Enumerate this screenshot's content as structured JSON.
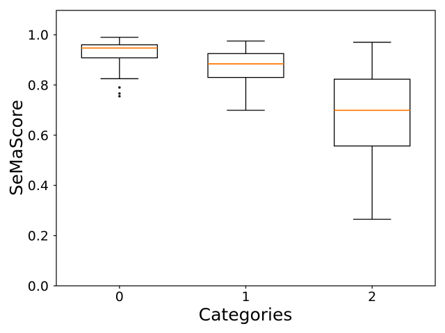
{
  "chart_data": {
    "type": "boxplot",
    "title": "",
    "xlabel": "Categories",
    "ylabel": "SeMaScore",
    "categories": [
      "0",
      "1",
      "2"
    ],
    "y_ticks": [
      "0.0",
      "0.2",
      "0.4",
      "0.6",
      "0.8",
      "1.0"
    ],
    "ylim": [
      0,
      1.097
    ],
    "grid": false,
    "legend": false,
    "colors": {
      "median": "#ff7f0e",
      "box_edge": "#000000",
      "text": "#000000",
      "background": "#ffffff"
    },
    "series": [
      {
        "category": "0",
        "whisker_low": 0.825,
        "q1": 0.908,
        "median": 0.947,
        "q3": 0.96,
        "whisker_high": 0.99,
        "outliers": [
          0.79,
          0.766,
          0.755
        ]
      },
      {
        "category": "1",
        "whisker_low": 0.699,
        "q1": 0.83,
        "median": 0.884,
        "q3": 0.925,
        "whisker_high": 0.975,
        "outliers": []
      },
      {
        "category": "2",
        "whisker_low": 0.265,
        "q1": 0.557,
        "median": 0.699,
        "q3": 0.823,
        "whisker_high": 0.97,
        "outliers": []
      }
    ]
  }
}
